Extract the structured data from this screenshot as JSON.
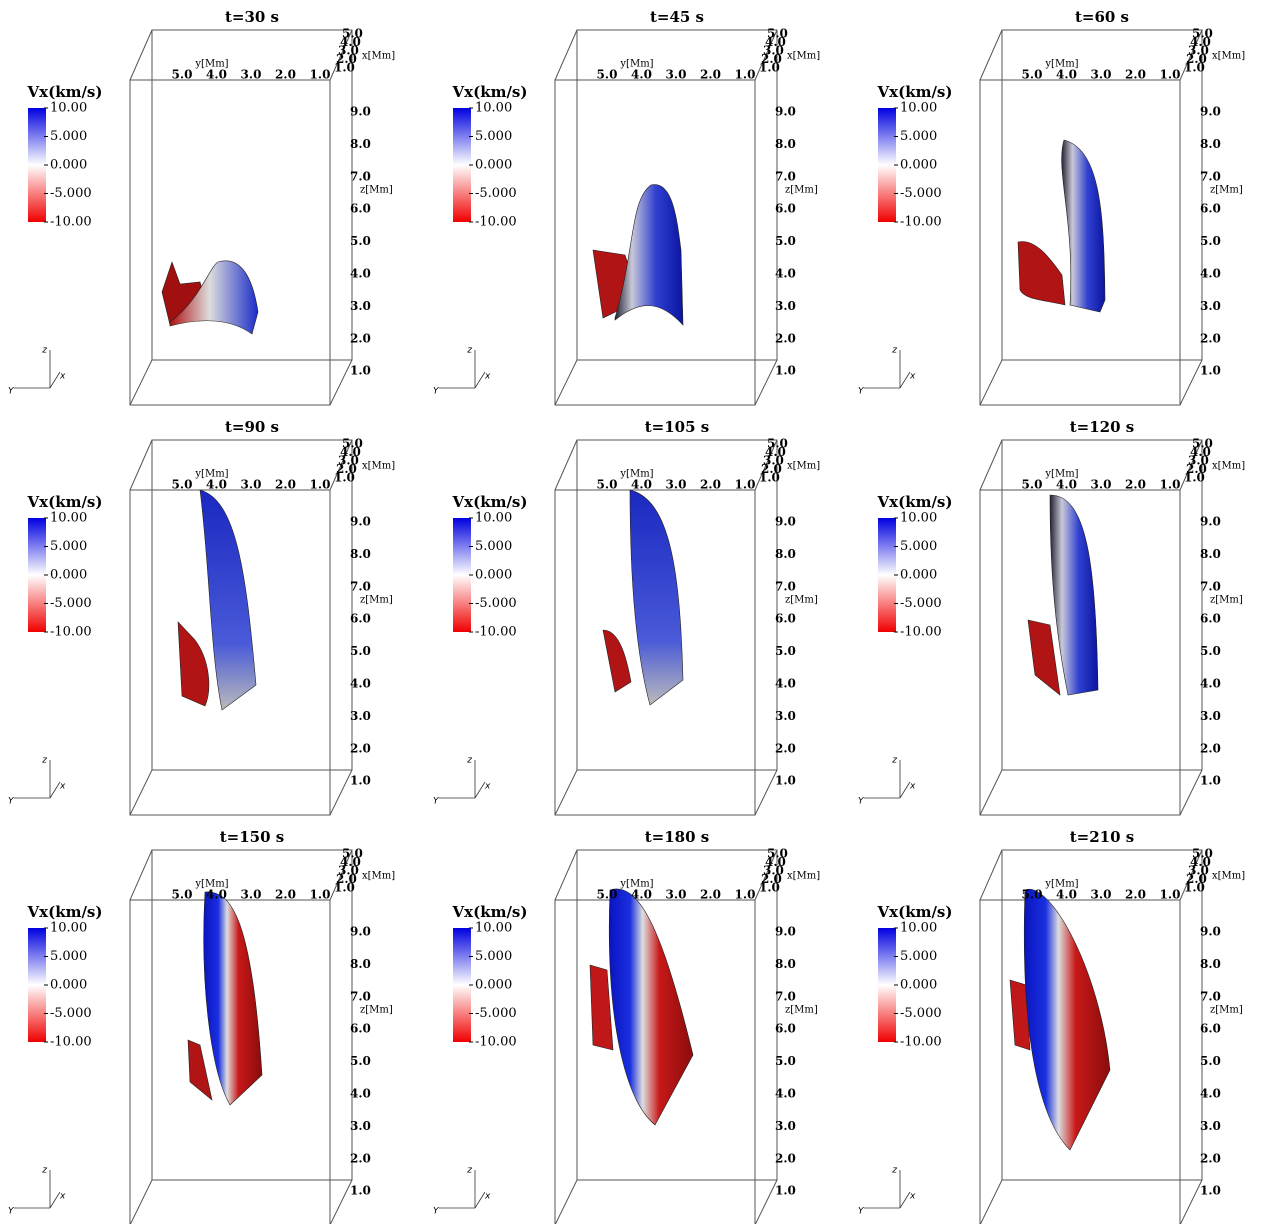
{
  "colorbar": {
    "title": "Vx(km/s)",
    "labels": [
      "10.00",
      "5.000",
      "0.000",
      "-5.000",
      "-10.00"
    ]
  },
  "axes": {
    "y_label": "y[Mm]",
    "x_label": "x[Mm]",
    "z_label": "z[Mm]",
    "y_ticks": [
      "5.0",
      "4.0",
      "3.0",
      "2.0",
      "1.0"
    ],
    "x_ticks": [
      "5.0",
      "4.0",
      "3.0",
      "2.0",
      "1.0"
    ],
    "z_ticks": [
      "9.0",
      "8.0",
      "7.0",
      "6.0",
      "5.0",
      "4.0",
      "3.0",
      "2.0",
      "1.0"
    ],
    "triad": {
      "up": "z",
      "right": "x",
      "left": "Y"
    }
  },
  "panels": [
    {
      "title": "t=30 s"
    },
    {
      "title": "t=45 s"
    },
    {
      "title": "t=60 s"
    },
    {
      "title": "t=90 s"
    },
    {
      "title": "t=105 s"
    },
    {
      "title": "t=120 s"
    },
    {
      "title": "t=150 s"
    },
    {
      "title": "t=180 s"
    },
    {
      "title": "t=210 s"
    }
  ]
}
